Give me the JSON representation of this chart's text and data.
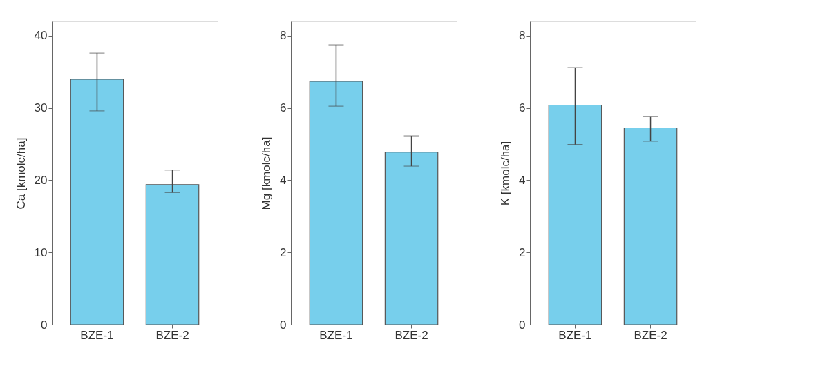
{
  "chart_data": [
    {
      "type": "bar",
      "ylabel": "Ca [kmolc/ha]",
      "categories": [
        "BZE-1",
        "BZE-2"
      ],
      "values": [
        34.0,
        19.4
      ],
      "errors": [
        [
          29.6,
          37.6
        ],
        [
          18.3,
          21.4
        ]
      ],
      "color": "#77cfec",
      "ylim": [
        0,
        42
      ],
      "yticks": [
        0,
        10,
        20,
        30,
        40
      ],
      "grid": false
    },
    {
      "type": "bar",
      "ylabel": "Mg [kmolc/ha]",
      "categories": [
        "BZE-1",
        "BZE-2"
      ],
      "values": [
        6.74,
        4.78
      ],
      "errors": [
        [
          6.05,
          7.75
        ],
        [
          4.39,
          5.23
        ]
      ],
      "color": "#77cfec",
      "ylim": [
        0,
        8.4
      ],
      "yticks": [
        0,
        2,
        4,
        6,
        8
      ],
      "grid": false
    },
    {
      "type": "bar",
      "ylabel": "K [kmolc/ha]",
      "categories": [
        "BZE-1",
        "BZE-2"
      ],
      "values": [
        6.08,
        5.45
      ],
      "errors": [
        [
          4.99,
          7.12
        ],
        [
          5.08,
          5.77
        ]
      ],
      "color": "#77cfec",
      "ylim": [
        0,
        8.4
      ],
      "yticks": [
        0,
        2,
        4,
        6,
        8
      ],
      "grid": false
    }
  ]
}
